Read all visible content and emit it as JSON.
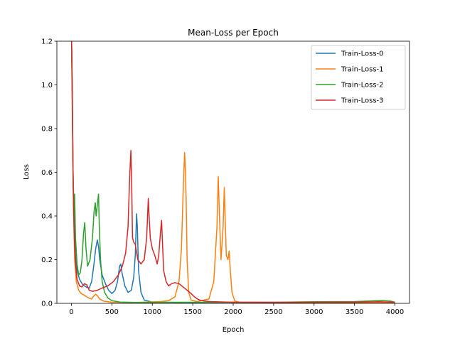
{
  "chart_data": {
    "type": "line",
    "title": "Mean-Loss per Epoch",
    "xlabel": "Epoch",
    "ylabel": "Loss",
    "xlim": [
      -180,
      4180
    ],
    "ylim": [
      0,
      1.2
    ],
    "xticks": [
      0,
      500,
      1000,
      1500,
      2000,
      2500,
      3000,
      3500,
      4000
    ],
    "yticks": [
      0.0,
      0.2,
      0.4,
      0.6,
      0.8,
      1.0,
      1.2
    ],
    "ytick_labels": [
      "0.0",
      "0.2",
      "0.4",
      "0.6",
      "0.8",
      "1.0",
      "1.2"
    ],
    "grid": false,
    "legend_position": "top-right",
    "series": [
      {
        "name": "Train-Loss-0",
        "color": "#1f77b4",
        "points": [
          [
            0,
            1.25
          ],
          [
            10,
            1.0
          ],
          [
            20,
            0.6
          ],
          [
            35,
            0.35
          ],
          [
            50,
            0.22
          ],
          [
            70,
            0.15
          ],
          [
            100,
            0.11
          ],
          [
            140,
            0.085
          ],
          [
            180,
            0.075
          ],
          [
            220,
            0.07
          ],
          [
            250,
            0.1
          ],
          [
            275,
            0.17
          ],
          [
            300,
            0.25
          ],
          [
            320,
            0.29
          ],
          [
            335,
            0.26
          ],
          [
            350,
            0.2
          ],
          [
            380,
            0.13
          ],
          [
            420,
            0.09
          ],
          [
            460,
            0.06
          ],
          [
            500,
            0.045
          ],
          [
            540,
            0.06
          ],
          [
            570,
            0.1
          ],
          [
            595,
            0.17
          ],
          [
            610,
            0.18
          ],
          [
            625,
            0.14
          ],
          [
            660,
            0.08
          ],
          [
            700,
            0.05
          ],
          [
            740,
            0.06
          ],
          [
            770,
            0.12
          ],
          [
            790,
            0.22
          ],
          [
            805,
            0.41
          ],
          [
            815,
            0.35
          ],
          [
            830,
            0.15
          ],
          [
            860,
            0.05
          ],
          [
            900,
            0.015
          ],
          [
            1000,
            0.006
          ],
          [
            1300,
            0.004
          ],
          [
            1600,
            0.004
          ],
          [
            2000,
            0.005
          ],
          [
            2500,
            0.005
          ],
          [
            3000,
            0.005
          ],
          [
            3500,
            0.005
          ],
          [
            3800,
            0.006
          ],
          [
            4000,
            0.004
          ]
        ]
      },
      {
        "name": "Train-Loss-1",
        "color": "#ff7f0e",
        "points": [
          [
            0,
            1.25
          ],
          [
            12,
            0.9
          ],
          [
            25,
            0.45
          ],
          [
            40,
            0.2
          ],
          [
            60,
            0.1
          ],
          [
            90,
            0.06
          ],
          [
            120,
            0.045
          ],
          [
            170,
            0.035
          ],
          [
            210,
            0.025
          ],
          [
            250,
            0.02
          ],
          [
            280,
            0.035
          ],
          [
            300,
            0.042
          ],
          [
            320,
            0.035
          ],
          [
            350,
            0.02
          ],
          [
            400,
            0.01
          ],
          [
            500,
            0.005
          ],
          [
            800,
            0.004
          ],
          [
            1100,
            0.008
          ],
          [
            1200,
            0.012
          ],
          [
            1280,
            0.03
          ],
          [
            1330,
            0.1
          ],
          [
            1360,
            0.25
          ],
          [
            1385,
            0.55
          ],
          [
            1400,
            0.69
          ],
          [
            1410,
            0.6
          ],
          [
            1420,
            0.45
          ],
          [
            1430,
            0.2
          ],
          [
            1450,
            0.05
          ],
          [
            1480,
            0.015
          ],
          [
            1550,
            0.008
          ],
          [
            1700,
            0.02
          ],
          [
            1760,
            0.1
          ],
          [
            1800,
            0.35
          ],
          [
            1815,
            0.58
          ],
          [
            1830,
            0.4
          ],
          [
            1850,
            0.2
          ],
          [
            1875,
            0.35
          ],
          [
            1890,
            0.53
          ],
          [
            1900,
            0.4
          ],
          [
            1915,
            0.22
          ],
          [
            1935,
            0.2
          ],
          [
            1950,
            0.24
          ],
          [
            1965,
            0.15
          ],
          [
            1985,
            0.05
          ],
          [
            2020,
            0.01
          ],
          [
            2100,
            0.004
          ],
          [
            2500,
            0.003
          ],
          [
            3000,
            0.003
          ],
          [
            3500,
            0.003
          ],
          [
            3800,
            0.004
          ],
          [
            4000,
            0.003
          ]
        ]
      },
      {
        "name": "Train-Loss-2",
        "color": "#2ca02c",
        "points": [
          [
            0,
            1.25
          ],
          [
            10,
            0.9
          ],
          [
            20,
            0.6
          ],
          [
            30,
            0.4
          ],
          [
            40,
            0.5
          ],
          [
            50,
            0.3
          ],
          [
            70,
            0.18
          ],
          [
            90,
            0.13
          ],
          [
            110,
            0.14
          ],
          [
            130,
            0.2
          ],
          [
            150,
            0.32
          ],
          [
            165,
            0.37
          ],
          [
            180,
            0.25
          ],
          [
            200,
            0.17
          ],
          [
            230,
            0.2
          ],
          [
            260,
            0.3
          ],
          [
            280,
            0.42
          ],
          [
            295,
            0.46
          ],
          [
            305,
            0.4
          ],
          [
            320,
            0.45
          ],
          [
            335,
            0.5
          ],
          [
            345,
            0.35
          ],
          [
            360,
            0.2
          ],
          [
            380,
            0.1
          ],
          [
            410,
            0.05
          ],
          [
            450,
            0.025
          ],
          [
            500,
            0.012
          ],
          [
            600,
            0.006
          ],
          [
            800,
            0.004
          ],
          [
            1000,
            0.004
          ],
          [
            1400,
            0.005
          ],
          [
            2000,
            0.005
          ],
          [
            2500,
            0.005
          ],
          [
            3000,
            0.007
          ],
          [
            3500,
            0.008
          ],
          [
            3650,
            0.01
          ],
          [
            3750,
            0.012
          ],
          [
            3850,
            0.013
          ],
          [
            3950,
            0.01
          ],
          [
            4000,
            0.005
          ]
        ]
      },
      {
        "name": "Train-Loss-3",
        "color": "#d62728",
        "points": [
          [
            0,
            1.25
          ],
          [
            10,
            1.0
          ],
          [
            20,
            0.55
          ],
          [
            35,
            0.3
          ],
          [
            50,
            0.18
          ],
          [
            70,
            0.11
          ],
          [
            100,
            0.08
          ],
          [
            130,
            0.075
          ],
          [
            160,
            0.09
          ],
          [
            190,
            0.085
          ],
          [
            220,
            0.06
          ],
          [
            260,
            0.055
          ],
          [
            320,
            0.06
          ],
          [
            380,
            0.07
          ],
          [
            450,
            0.08
          ],
          [
            520,
            0.1
          ],
          [
            580,
            0.13
          ],
          [
            630,
            0.17
          ],
          [
            670,
            0.23
          ],
          [
            700,
            0.35
          ],
          [
            720,
            0.58
          ],
          [
            735,
            0.7
          ],
          [
            745,
            0.55
          ],
          [
            755,
            0.3
          ],
          [
            770,
            0.28
          ],
          [
            790,
            0.27
          ],
          [
            820,
            0.2
          ],
          [
            860,
            0.18
          ],
          [
            900,
            0.2
          ],
          [
            930,
            0.3
          ],
          [
            950,
            0.48
          ],
          [
            960,
            0.4
          ],
          [
            975,
            0.3
          ],
          [
            1000,
            0.25
          ],
          [
            1030,
            0.22
          ],
          [
            1060,
            0.18
          ],
          [
            1080,
            0.22
          ],
          [
            1100,
            0.32
          ],
          [
            1115,
            0.38
          ],
          [
            1125,
            0.28
          ],
          [
            1140,
            0.15
          ],
          [
            1170,
            0.1
          ],
          [
            1200,
            0.08
          ],
          [
            1240,
            0.09
          ],
          [
            1280,
            0.095
          ],
          [
            1330,
            0.09
          ],
          [
            1380,
            0.075
          ],
          [
            1430,
            0.06
          ],
          [
            1480,
            0.045
          ],
          [
            1520,
            0.03
          ],
          [
            1560,
            0.02
          ],
          [
            1600,
            0.013
          ],
          [
            1700,
            0.008
          ],
          [
            2000,
            0.005
          ],
          [
            2500,
            0.004
          ],
          [
            3000,
            0.004
          ],
          [
            3500,
            0.005
          ],
          [
            3800,
            0.007
          ],
          [
            4000,
            0.005
          ]
        ]
      }
    ]
  }
}
